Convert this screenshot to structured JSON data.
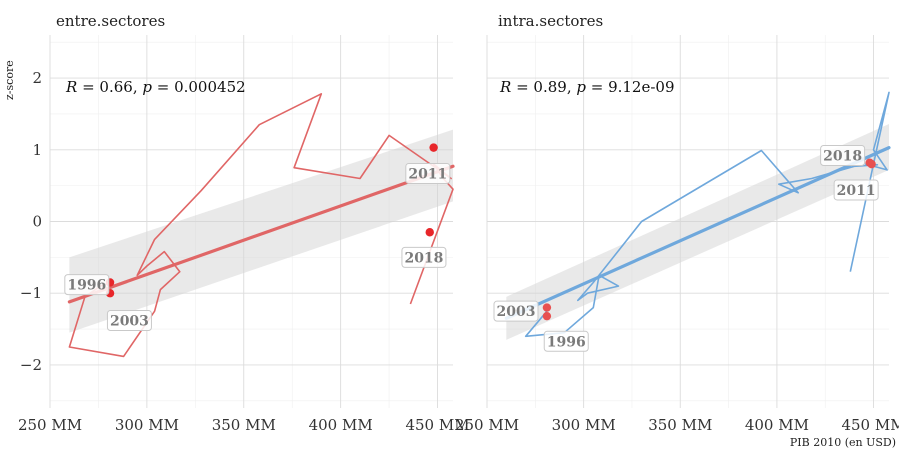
{
  "chart_data": {
    "type": "scatter",
    "xlabel": "PIB 2010 (en USD)",
    "ylabel": "z-score",
    "xlim": [
      250,
      458
    ],
    "ylim": [
      -2.6,
      2.6
    ],
    "x_ticks": [
      250,
      300,
      350,
      400,
      450
    ],
    "x_tick_labels": [
      "250 MM",
      "300 MM",
      "350 MM",
      "400 MM",
      "450 MM"
    ],
    "y_ticks": [
      -2,
      -1,
      0,
      1,
      2
    ],
    "y_tick_labels": [
      "−2",
      "−1",
      "0",
      "1",
      "2"
    ],
    "grid": true,
    "panels": [
      {
        "title": "entre.sectores",
        "color": "#e06666",
        "stat": {
          "r": "0.66",
          "p": "0.000452"
        },
        "path": [
          [
            281,
            -0.85
          ],
          [
            276,
            -0.9
          ],
          [
            268,
            -1.05
          ],
          [
            260,
            -1.75
          ],
          [
            288,
            -1.88
          ],
          [
            304,
            -1.25
          ],
          [
            307,
            -0.95
          ],
          [
            317,
            -0.7
          ],
          [
            309,
            -0.42
          ],
          [
            300,
            -0.62
          ],
          [
            295,
            -0.75
          ],
          [
            304,
            -0.25
          ],
          [
            328,
            0.43
          ],
          [
            358,
            1.35
          ],
          [
            390,
            1.78
          ],
          [
            376,
            0.75
          ],
          [
            410,
            0.6
          ],
          [
            425,
            1.2
          ],
          [
            457,
            0.6
          ],
          [
            448,
            0.8
          ],
          [
            453,
            0.6
          ],
          [
            458,
            0.45
          ],
          [
            436,
            -1.15
          ]
        ],
        "points": [
          [
            281,
            -0.85
          ],
          [
            281,
            -1.0
          ],
          [
            448,
            1.03
          ],
          [
            446,
            -0.15
          ]
        ],
        "fit": {
          "x": [
            260,
            458
          ],
          "y": [
            -1.12,
            0.77
          ]
        },
        "band": {
          "x": [
            260,
            458
          ],
          "lower": [
            -1.55,
            0.28
          ],
          "upper": [
            -0.5,
            1.28
          ]
        },
        "labels": [
          {
            "text": "1996",
            "x": 269,
            "y": -0.88
          },
          {
            "text": "2003",
            "x": 291,
            "y": -1.38
          },
          {
            "text": "2011",
            "x": 445,
            "y": 0.67
          },
          {
            "text": "2018",
            "x": 443,
            "y": -0.5
          }
        ]
      },
      {
        "title": "intra.sectores",
        "color": "#6fa8dc",
        "stat": {
          "r": "0.89",
          "p": "9.12e-09"
        },
        "path": [
          [
            281,
            -1.25
          ],
          [
            270,
            -1.6
          ],
          [
            290,
            -1.55
          ],
          [
            305,
            -1.2
          ],
          [
            308,
            -0.75
          ],
          [
            318,
            -0.9
          ],
          [
            302,
            -1.0
          ],
          [
            297,
            -1.1
          ],
          [
            305,
            -0.85
          ],
          [
            330,
            0.0
          ],
          [
            392,
            0.99
          ],
          [
            411,
            0.4
          ],
          [
            401,
            0.52
          ],
          [
            418,
            0.6
          ],
          [
            440,
            0.77
          ],
          [
            452,
            0.79
          ],
          [
            446,
            0.8
          ],
          [
            457,
            0.72
          ],
          [
            450,
            1.0
          ],
          [
            458,
            1.8
          ],
          [
            450,
            0.8
          ],
          [
            438,
            -0.7
          ]
        ],
        "points": [
          [
            281,
            -1.2
          ],
          [
            281,
            -1.32
          ],
          [
            448,
            0.82
          ],
          [
            449,
            0.8
          ]
        ],
        "fit": {
          "x": [
            260,
            458
          ],
          "y": [
            -1.35,
            1.03
          ]
        },
        "band": {
          "x": [
            260,
            458
          ],
          "lower": [
            -1.65,
            0.72
          ],
          "upper": [
            -1.05,
            1.36
          ]
        },
        "labels": [
          {
            "text": "2003",
            "x": 265,
            "y": -1.25
          },
          {
            "text": "1996",
            "x": 291,
            "y": -1.67
          },
          {
            "text": "2018",
            "x": 434,
            "y": 0.92
          },
          {
            "text": "2011",
            "x": 441,
            "y": 0.44
          }
        ]
      }
    ]
  }
}
